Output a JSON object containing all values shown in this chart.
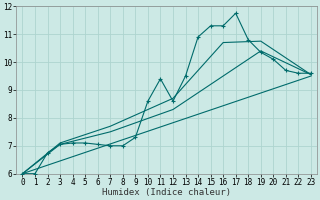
{
  "xlabel": "Humidex (Indice chaleur)",
  "ylabel": "",
  "bg_color": "#cce9e5",
  "grid_color": "#aed4cf",
  "line_color": "#006b6b",
  "xlim": [
    -0.5,
    23.5
  ],
  "ylim": [
    6,
    12
  ],
  "xticks": [
    0,
    1,
    2,
    3,
    4,
    5,
    6,
    7,
    8,
    9,
    10,
    11,
    12,
    13,
    14,
    15,
    16,
    17,
    18,
    19,
    20,
    21,
    22,
    23
  ],
  "yticks": [
    6,
    7,
    8,
    9,
    10,
    11,
    12
  ],
  "line_main_x": [
    0,
    1,
    2,
    3,
    4,
    5,
    6,
    7,
    8,
    9,
    10,
    11,
    12,
    13,
    14,
    15,
    16,
    17,
    18,
    19,
    20,
    21,
    22,
    23
  ],
  "line_main_y": [
    6.0,
    6.0,
    6.75,
    7.05,
    7.1,
    7.1,
    7.05,
    7.0,
    7.0,
    7.3,
    8.6,
    9.4,
    8.6,
    9.5,
    10.9,
    11.3,
    11.3,
    11.75,
    10.8,
    10.35,
    10.1,
    9.7,
    9.6,
    9.6
  ],
  "line2_x": [
    0,
    23
  ],
  "line2_y": [
    6.0,
    9.5
  ],
  "line3_x": [
    0,
    3,
    7,
    12,
    17,
    19,
    23
  ],
  "line3_y": [
    6.0,
    7.05,
    7.5,
    8.3,
    9.8,
    10.4,
    9.55
  ],
  "line4_x": [
    0,
    3,
    7,
    12,
    16,
    19,
    23
  ],
  "line4_y": [
    6.0,
    7.1,
    7.7,
    8.7,
    10.7,
    10.75,
    9.55
  ]
}
